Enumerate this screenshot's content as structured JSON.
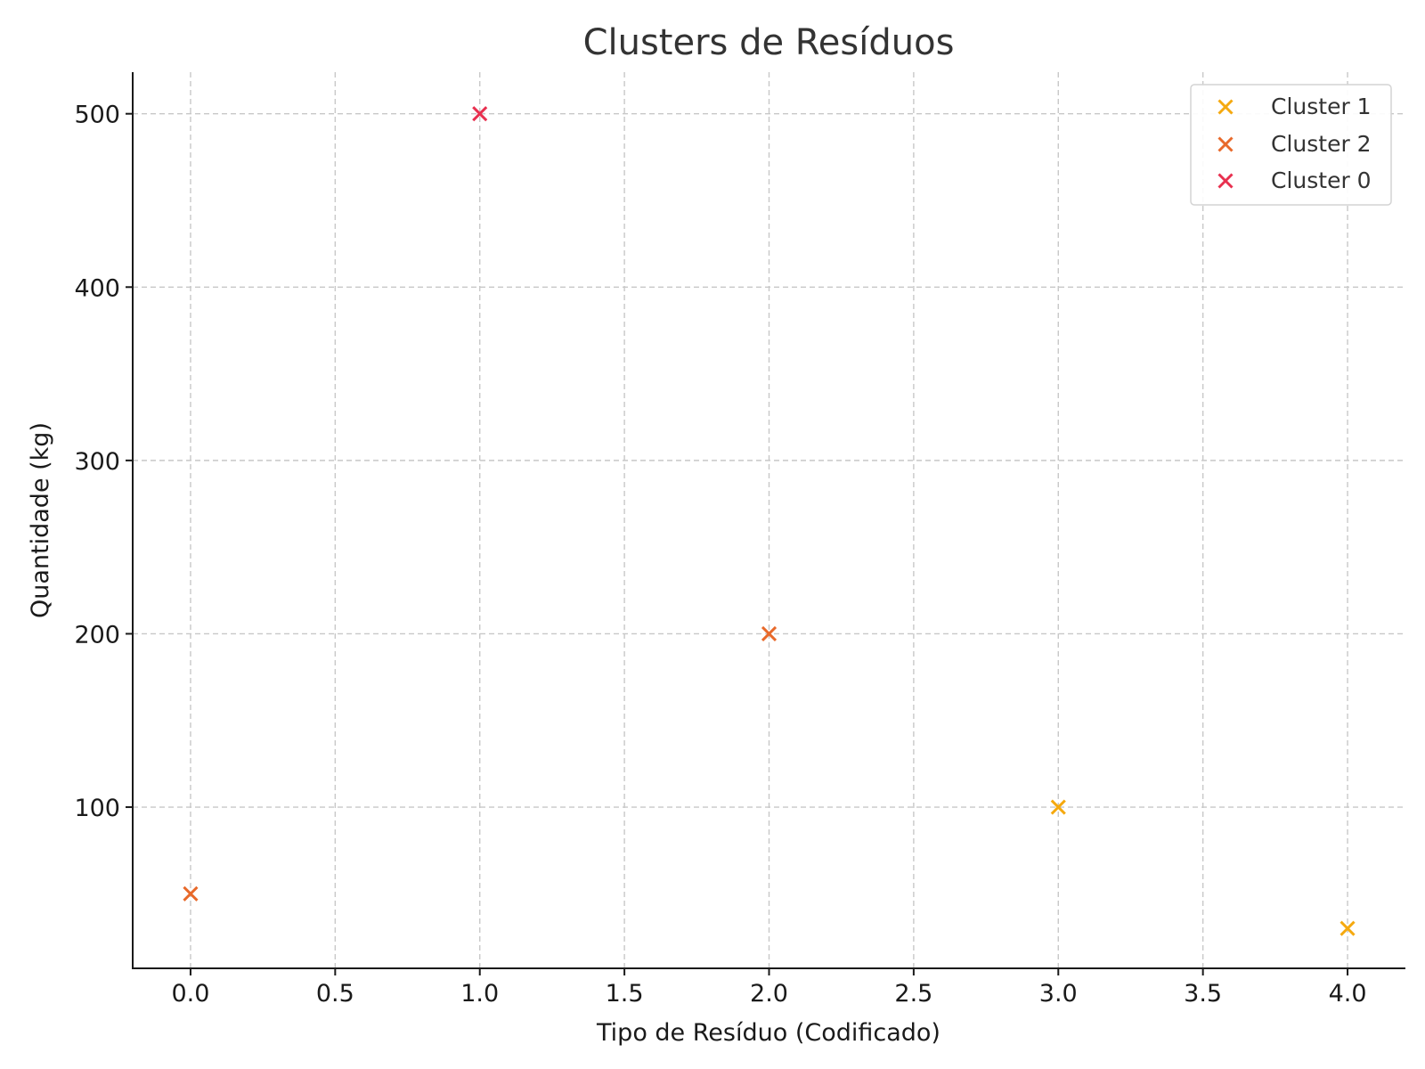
{
  "chart_data": {
    "type": "scatter",
    "title": "Clusters de Resíduos",
    "xlabel": "Tipo de Resíduo (Codificado)",
    "ylabel": "Quantidade (kg)",
    "xlim": [
      -0.2,
      4.2
    ],
    "ylim": [
      7,
      524
    ],
    "xticks": [
      0.0,
      0.5,
      1.0,
      1.5,
      2.0,
      2.5,
      3.0,
      3.5,
      4.0
    ],
    "xtick_labels": [
      "0.0",
      "0.5",
      "1.0",
      "1.5",
      "2.0",
      "2.5",
      "3.0",
      "3.5",
      "4.0"
    ],
    "yticks": [
      100,
      200,
      300,
      400,
      500
    ],
    "ytick_labels": [
      "100",
      "200",
      "300",
      "400",
      "500"
    ],
    "grid": true,
    "legend_position": "top-right",
    "marker": "x",
    "series": [
      {
        "name": "Cluster 1",
        "color": "#F5A90F",
        "points": [
          {
            "x": 3,
            "y": 100
          },
          {
            "x": 4,
            "y": 30
          }
        ]
      },
      {
        "name": "Cluster 2",
        "color": "#E8692A",
        "points": [
          {
            "x": 0,
            "y": 50
          },
          {
            "x": 2,
            "y": 200
          }
        ]
      },
      {
        "name": "Cluster 0",
        "color": "#E8304F",
        "points": [
          {
            "x": 1,
            "y": 500
          }
        ]
      }
    ]
  }
}
